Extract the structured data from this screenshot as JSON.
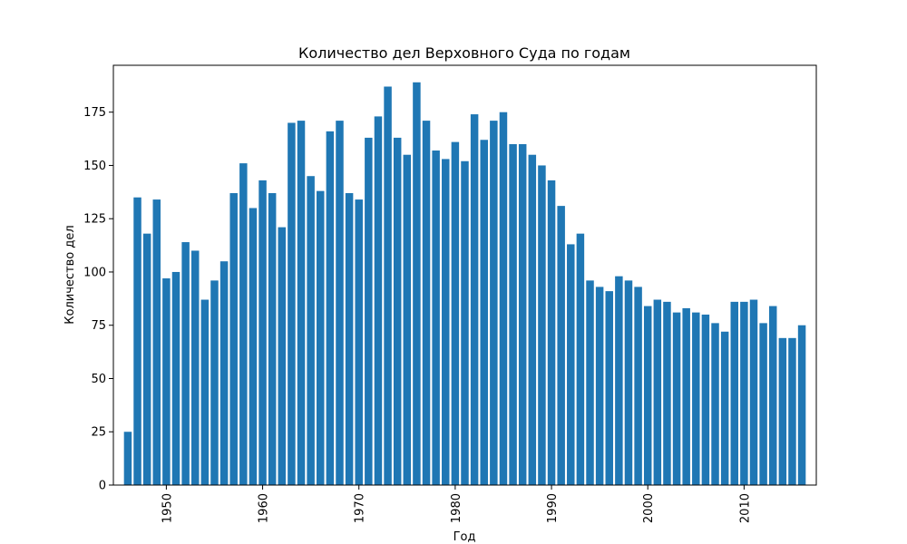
{
  "chart_data": {
    "type": "bar",
    "title": "Количество дел Верховного Суда по годам",
    "xlabel": "Год",
    "ylabel": "Количество дел",
    "xlim": [
      1944.5,
      1917.5
    ],
    "ylim": [
      0,
      197
    ],
    "grid": false,
    "legend": "none",
    "bar_color": "#1f77b4",
    "x_ticks": [
      1950,
      1960,
      1970,
      1980,
      1990,
      2000,
      2010
    ],
    "y_ticks": [
      0,
      25,
      50,
      75,
      100,
      125,
      150,
      175
    ],
    "x": [
      1946,
      1947,
      1948,
      1949,
      1950,
      1951,
      1952,
      1953,
      1954,
      1955,
      1956,
      1957,
      1958,
      1959,
      1960,
      1961,
      1962,
      1963,
      1964,
      1965,
      1966,
      1967,
      1968,
      1969,
      1970,
      1971,
      1972,
      1973,
      1974,
      1975,
      1976,
      1977,
      1978,
      1979,
      1980,
      1981,
      1982,
      1983,
      1984,
      1985,
      1986,
      1987,
      1988,
      1989,
      1990,
      1991,
      1992,
      1993,
      1994,
      1995,
      1996,
      1997,
      1998,
      1999,
      2000,
      2001,
      2002,
      2003,
      2004,
      2005,
      2006,
      2007,
      2008,
      2009,
      2010,
      2011,
      2012,
      2013,
      2014,
      2015,
      2016
    ],
    "values": [
      25,
      135,
      118,
      134,
      97,
      100,
      114,
      110,
      87,
      96,
      105,
      137,
      151,
      130,
      143,
      137,
      121,
      170,
      171,
      145,
      138,
      166,
      171,
      137,
      134,
      163,
      173,
      187,
      163,
      155,
      189,
      171,
      157,
      153,
      161,
      152,
      174,
      162,
      171,
      175,
      160,
      160,
      155,
      150,
      143,
      131,
      113,
      118,
      96,
      93,
      91,
      98,
      96,
      93,
      84,
      87,
      86,
      81,
      83,
      81,
      80,
      76,
      72,
      86,
      86,
      87,
      76,
      84,
      69,
      69,
      75
    ]
  }
}
